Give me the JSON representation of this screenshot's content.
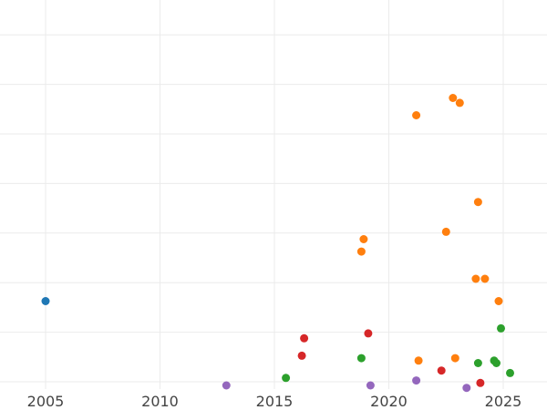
{
  "chart_data": {
    "type": "scatter",
    "title": "",
    "xlabel": "",
    "ylabel": "",
    "xlim": [
      2005,
      2025
    ],
    "x_ticks": [
      2005,
      2010,
      2015,
      2020,
      2025
    ],
    "x_tick_labels": [
      "2005",
      "2010",
      "2015",
      "2020",
      "2025"
    ],
    "grid": true,
    "legend": "none",
    "series": [
      {
        "color": "#1f77b4",
        "points": [
          {
            "x": 2005.0,
            "y": 3.4
          }
        ]
      },
      {
        "color": "#ff7f0e",
        "points": [
          {
            "x": 2021.2,
            "y": 10.9
          },
          {
            "x": 2022.8,
            "y": 11.6
          },
          {
            "x": 2023.1,
            "y": 11.4
          },
          {
            "x": 2023.9,
            "y": 7.4
          },
          {
            "x": 2022.5,
            "y": 6.2
          },
          {
            "x": 2018.9,
            "y": 5.9
          },
          {
            "x": 2018.8,
            "y": 5.4
          },
          {
            "x": 2023.8,
            "y": 4.3
          },
          {
            "x": 2024.2,
            "y": 4.3
          },
          {
            "x": 2024.8,
            "y": 3.4
          },
          {
            "x": 2021.3,
            "y": 1.0
          },
          {
            "x": 2022.9,
            "y": 1.1
          }
        ]
      },
      {
        "color": "#2ca02c",
        "points": [
          {
            "x": 2024.9,
            "y": 2.3
          },
          {
            "x": 2018.8,
            "y": 1.1
          },
          {
            "x": 2015.5,
            "y": 0.3
          },
          {
            "x": 2023.9,
            "y": 0.9
          },
          {
            "x": 2024.6,
            "y": 1.0
          },
          {
            "x": 2024.7,
            "y": 0.9
          },
          {
            "x": 2025.3,
            "y": 0.5
          }
        ]
      },
      {
        "color": "#d62728",
        "points": [
          {
            "x": 2019.1,
            "y": 2.1
          },
          {
            "x": 2016.3,
            "y": 1.9
          },
          {
            "x": 2016.2,
            "y": 1.2
          },
          {
            "x": 2022.3,
            "y": 0.6
          },
          {
            "x": 2024.0,
            "y": 0.1
          }
        ]
      },
      {
        "color": "#9467bd",
        "points": [
          {
            "x": 2012.9,
            "y": 0.0
          },
          {
            "x": 2019.2,
            "y": 0.0
          },
          {
            "x": 2021.2,
            "y": 0.2
          },
          {
            "x": 2023.4,
            "y": -0.1
          }
        ]
      }
    ]
  }
}
